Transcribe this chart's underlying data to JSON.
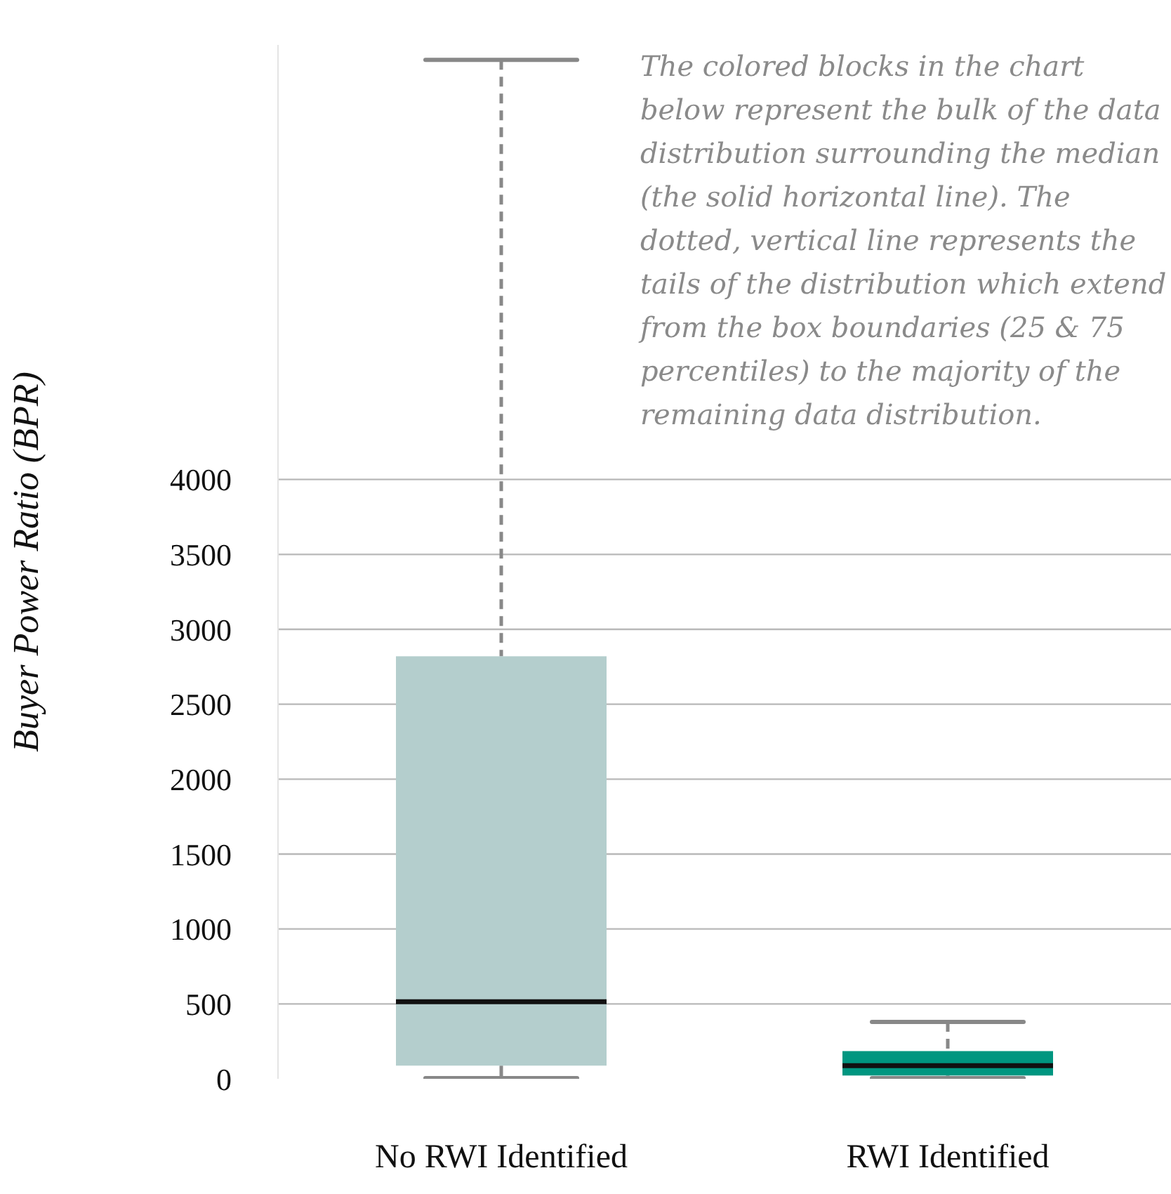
{
  "chart_data": {
    "type": "box",
    "ylabel": "Buyer Power Ratio (BPR)",
    "categories": [
      "No RWI Identified",
      "RWI Identified"
    ],
    "boxes": [
      {
        "low": 5,
        "q1": 88,
        "median": 515,
        "q3": 2820,
        "high": 6800
      },
      {
        "low": 5,
        "q1": 22,
        "median": 88,
        "q3": 185,
        "high": 380
      }
    ],
    "colors": [
      "#b4cecd",
      "#009680"
    ],
    "ylim": [
      0,
      6900
    ],
    "yticks": [
      0,
      500,
      1000,
      1500,
      2000,
      2500,
      3000,
      3500,
      4000
    ],
    "grid": "y",
    "annotations": [
      "The colored blocks in the chart below represent the bulk of the data distribution surrounding the median (the solid horizontal line). The dotted, vertical line represents the tails of the distribution which extend from the box boundaries (25 & 75 percentiles) to the majority of the remaining data distribution."
    ]
  }
}
